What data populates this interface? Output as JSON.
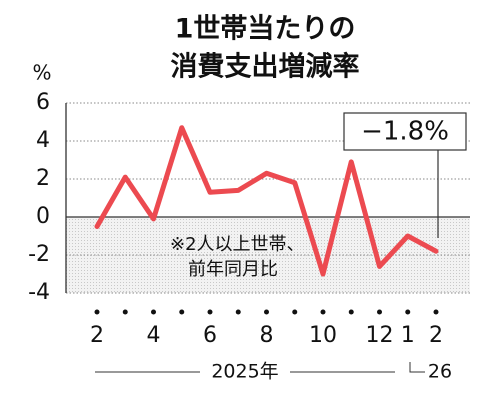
{
  "chart_data": {
    "type": "line",
    "title": [
      "1世帯当たりの",
      "消費支出増減率"
    ],
    "y_unit": "%",
    "categories": [
      "2",
      null,
      "4",
      null,
      "6",
      null,
      "8",
      null,
      "10",
      null,
      "12",
      "1",
      "2"
    ],
    "series": [
      {
        "name": null,
        "color": "#ec4a50",
        "values": [
          -0.5,
          2.1,
          -0.1,
          4.7,
          1.3,
          1.4,
          2.3,
          1.8,
          -3.0,
          2.9,
          -2.6,
          -1.0,
          -1.8
        ]
      }
    ],
    "ylim": [
      -4,
      6
    ],
    "yticks": [
      6,
      4,
      2,
      0,
      -2,
      -4
    ],
    "grid": true,
    "note": [
      "※2人以上世帯、",
      "前年同月比"
    ],
    "annotation": "−1.8%",
    "year_labels": [
      "2025年",
      "26"
    ]
  }
}
